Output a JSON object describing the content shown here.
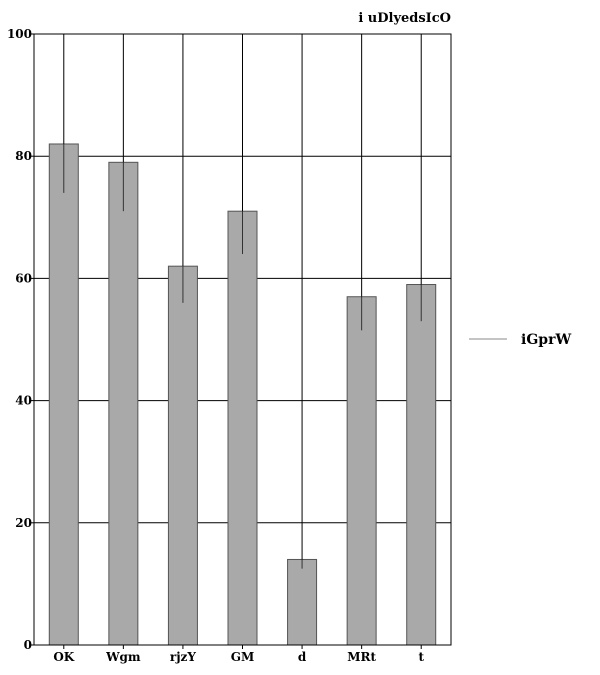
{
  "chart_data": {
    "type": "bar",
    "title": "i uDlyedsIcO",
    "categories": [
      "OK",
      "Wgm",
      "rjzY",
      "GM",
      "d",
      "MRt",
      "t"
    ],
    "series": [
      {
        "name": "iGprW",
        "values": [
          82,
          79,
          62,
          71,
          14,
          57,
          59
        ],
        "error_low": [
          74,
          71,
          56,
          64,
          12.5,
          51.5,
          53
        ]
      }
    ],
    "ylim": [
      0,
      100
    ],
    "yticks": [
      0,
      20,
      40,
      60,
      80,
      100
    ],
    "grid": "y",
    "legend_position": "right",
    "colors": {
      "bar_fill": "#a9a9a9",
      "bar_stroke": "#555555",
      "grid": "#000000",
      "legend_line": "#888888"
    }
  }
}
